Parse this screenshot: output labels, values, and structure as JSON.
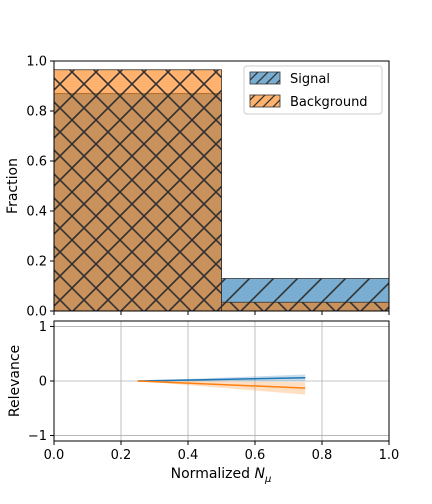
{
  "chart_data": [
    {
      "type": "bar",
      "panel": "top",
      "ylabel": "Fraction",
      "ylim": [
        0,
        1.0
      ],
      "xlim": [
        0,
        1.0
      ],
      "yticks": [
        "0.0",
        "0.2",
        "0.4",
        "0.6",
        "0.8",
        "1.0"
      ],
      "bin_edges": [
        0.0,
        0.5,
        1.0
      ],
      "series": [
        {
          "name": "Signal",
          "values": [
            0.87,
            0.13
          ],
          "color": "#1f77b4",
          "hatch": "/"
        },
        {
          "name": "Background",
          "values": [
            0.965,
            0.035
          ],
          "color": "#ff7f0e",
          "hatch": "x"
        }
      ],
      "legend": "top-right"
    },
    {
      "type": "line",
      "panel": "bottom",
      "ylabel": "Relevance",
      "xlabel_prefix": "Normalized ",
      "xlabel_math": "N",
      "xlabel_sub": "μ",
      "xlim": [
        0,
        1.0
      ],
      "ylim": [
        -1.1,
        1.1
      ],
      "xticks": [
        "0.0",
        "0.2",
        "0.4",
        "0.6",
        "0.8",
        "1.0"
      ],
      "yticks": [
        "−1",
        "0",
        "1"
      ],
      "grid": true,
      "series": [
        {
          "color": "#1f77b4",
          "x": [
            0.25,
            0.75
          ],
          "y": [
            0.0,
            0.06
          ],
          "band_lower": [
            0.0,
            0.0
          ],
          "band_upper": [
            0.0,
            0.12
          ]
        },
        {
          "color": "#ff7f0e",
          "x": [
            0.25,
            0.75
          ],
          "y": [
            0.0,
            -0.13
          ],
          "band_lower": [
            0.0,
            -0.25
          ],
          "band_upper": [
            0.0,
            -0.02
          ]
        }
      ]
    }
  ]
}
